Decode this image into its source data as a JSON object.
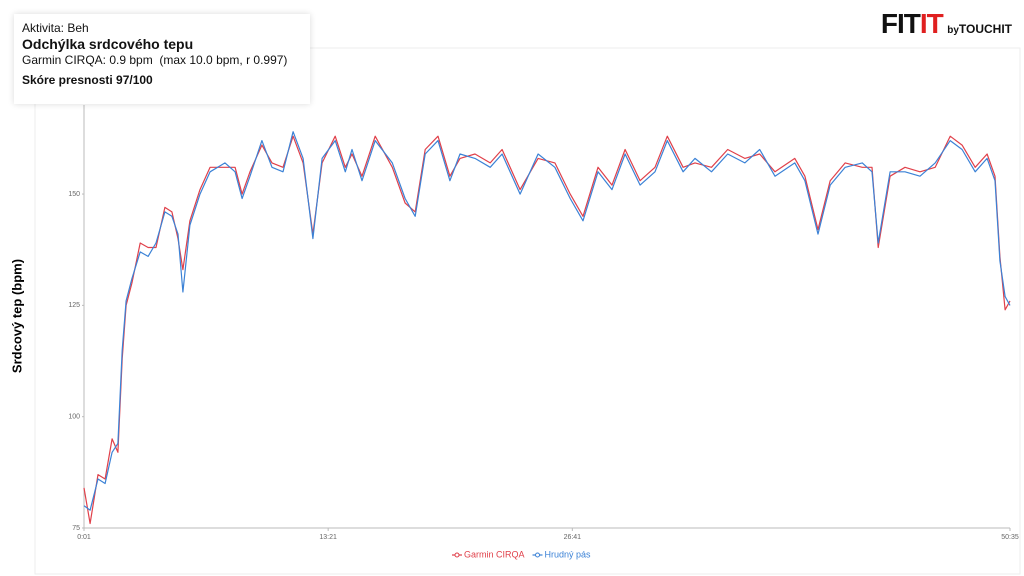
{
  "info_box": {
    "activity": "Aktivita: Beh",
    "heading": "Odchýlka srdcového tepu",
    "detail": "Garmin CIRQA: 0.9 bpm  (max 10.0 bpm, r 0.997)",
    "score": "Skóre presnosti 97/100"
  },
  "logo": {
    "fit": "FIT",
    "it": "IT",
    "by": "by",
    "brand": "TOUCHIT"
  },
  "chart_data": {
    "type": "line",
    "y_label": "Srdcový tep (bpm)",
    "x": [
      1,
      21,
      47,
      70,
      93,
      112,
      126,
      139,
      158,
      185,
      211,
      237,
      266,
      289,
      309,
      325,
      348,
      381,
      414,
      463,
      496,
      519,
      545,
      584,
      617,
      653,
      686,
      719,
      751,
      781,
      824,
      857,
      879,
      912,
      955,
      1011,
      1053,
      1086,
      1119,
      1161,
      1200,
      1233,
      1282,
      1332,
      1371,
      1430,
      1489,
      1544,
      1594,
      1636,
      1685,
      1731,
      1774,
      1823,
      1872,
      1912,
      1964,
      2003,
      2057,
      2110,
      2166,
      2215,
      2265,
      2330,
      2363,
      2406,
      2446,
      2495,
      2551,
      2583,
      2603,
      2642,
      2691,
      2740,
      2790,
      2839,
      2878,
      2921,
      2960,
      2986,
      3002,
      3019,
      3035
    ],
    "series": [
      {
        "name": "Garmin CIRQA",
        "color": "#e0404a",
        "values": [
          84,
          76,
          87,
          86,
          95,
          92,
          113,
          125,
          130,
          139,
          138,
          138,
          147,
          146,
          140,
          133,
          144,
          151,
          156,
          156,
          156,
          150,
          155,
          161,
          157,
          156,
          163,
          157,
          141,
          157,
          163,
          156,
          159,
          154,
          163,
          156,
          148,
          146,
          160,
          163,
          154,
          158,
          159,
          157,
          160,
          151,
          158,
          157,
          150,
          145,
          156,
          152,
          160,
          153,
          156,
          163,
          156,
          157,
          156,
          160,
          158,
          159,
          155,
          158,
          154,
          142,
          153,
          157,
          156,
          156,
          138,
          154,
          156,
          155,
          156,
          163,
          161,
          156,
          159,
          154,
          136,
          124,
          126
        ]
      },
      {
        "name": "Hrudný pás",
        "color": "#3b82d6",
        "values": [
          80,
          79,
          86,
          85,
          92,
          94,
          115,
          126,
          131,
          137,
          136,
          139,
          146,
          145,
          141,
          128,
          143,
          150,
          155,
          157,
          155,
          149,
          154,
          162,
          156,
          155,
          164,
          158,
          140,
          158,
          162,
          155,
          160,
          153,
          162,
          157,
          149,
          145,
          159,
          162,
          153,
          159,
          158,
          156,
          159,
          150,
          159,
          156,
          149,
          144,
          155,
          151,
          159,
          152,
          155,
          162,
          155,
          158,
          155,
          159,
          157,
          160,
          154,
          157,
          153,
          141,
          152,
          156,
          157,
          155,
          139,
          155,
          155,
          154,
          157,
          162,
          160,
          155,
          158,
          153,
          135,
          127,
          125
        ]
      }
    ],
    "xlim": [
      1,
      3035
    ],
    "xticks": [
      {
        "value": 1,
        "label": "0:01"
      },
      {
        "value": 801,
        "label": "13:21"
      },
      {
        "value": 1601,
        "label": "26:41"
      },
      {
        "value": 3035,
        "label": "50:35"
      }
    ],
    "ylim": [
      75,
      170
    ],
    "yticks": [
      75,
      100,
      125,
      150
    ],
    "grid": false
  }
}
